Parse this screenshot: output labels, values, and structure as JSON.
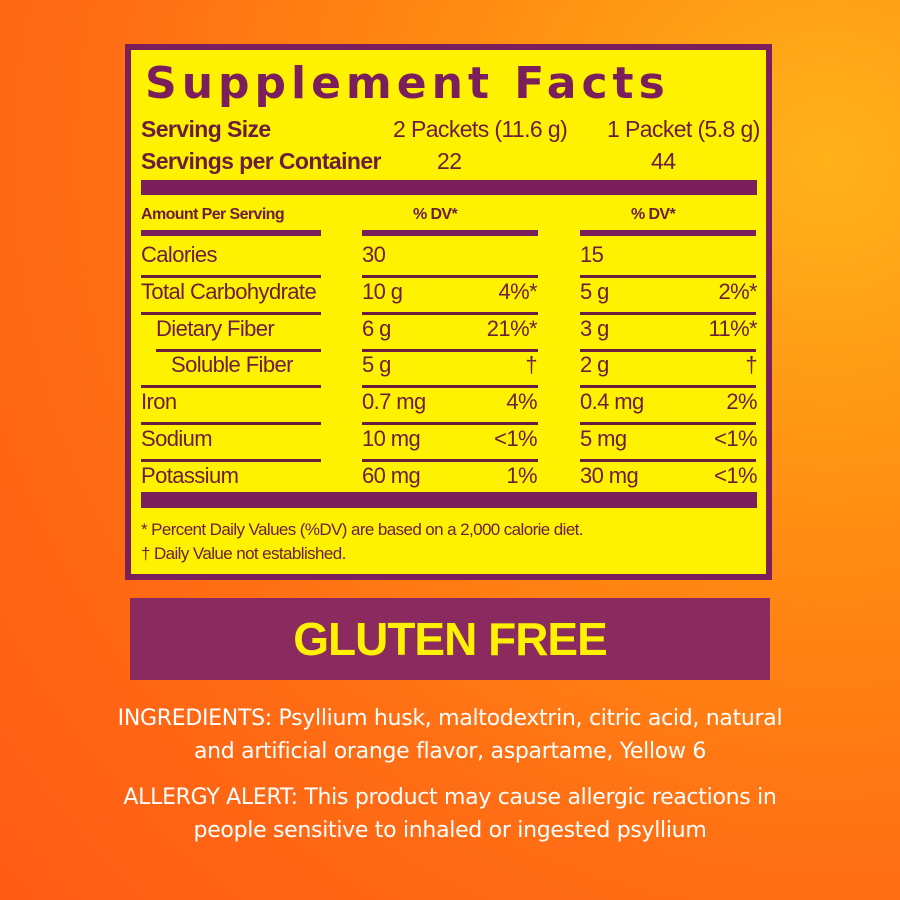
{
  "facts": {
    "title": "Supplement Facts",
    "serving_size_label": "Serving Size",
    "serving_size_1": "2 Packets (11.6 g)",
    "serving_size_2": "1 Packet (5.8 g)",
    "servings_label": "Servings per Container",
    "servings_1": "22",
    "servings_2": "44",
    "amount_header": "Amount Per Serving",
    "dv_header_1": "% DV*",
    "dv_header_2": "% DV*",
    "rows": [
      {
        "label": "Calories",
        "amt1": "30",
        "dv1": "",
        "amt2": "15",
        "dv2": ""
      },
      {
        "label": "Total Carbohydrate",
        "amt1": "10 g",
        "dv1": "4%*",
        "amt2": "5 g",
        "dv2": "2%*"
      },
      {
        "label": "Dietary Fiber",
        "amt1": "6 g",
        "dv1": "21%*",
        "amt2": "3 g",
        "dv2": "11%*"
      },
      {
        "label": "Soluble Fiber",
        "amt1": "5 g",
        "dv1": "†",
        "amt2": "2 g",
        "dv2": "†"
      },
      {
        "label": "Iron",
        "amt1": "0.7 mg",
        "dv1": "4%",
        "amt2": "0.4 mg",
        "dv2": "2%"
      },
      {
        "label": "Sodium",
        "amt1": "10 mg",
        "dv1": "<1%",
        "amt2": "5 mg",
        "dv2": "<1%"
      },
      {
        "label": "Potassium",
        "amt1": "60 mg",
        "dv1": "1%",
        "amt2": "30 mg",
        "dv2": "<1%"
      }
    ],
    "footnote_1": "* Percent Daily Values (%DV) are based on a 2,000 calorie diet.",
    "footnote_2": "† Daily Value not established."
  },
  "badge": "GLUTEN FREE",
  "ingredients_line1": "INGREDIENTS: Psyllium husk, maltodextrin, citric acid, natural",
  "ingredients_line2": "and artificial orange flavor, aspartame, Yellow 6",
  "allergy_line1": "ALLERGY ALERT: This product may cause allergic reactions in",
  "allergy_line2": "people sensitive to inhaled or ingested psyllium",
  "colors": {
    "background": "#ff7014",
    "panel": "#fff200",
    "purple": "#7a1f5c",
    "text": "#ffffff"
  }
}
